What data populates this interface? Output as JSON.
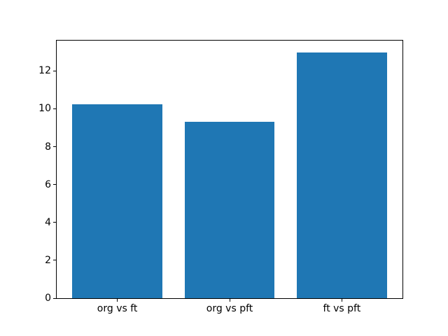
{
  "figure": {
    "background": "#ffffff",
    "text_color": "#000000",
    "spine_color": "#000000"
  },
  "chart_data": {
    "type": "bar",
    "title": "",
    "xlabel": "",
    "ylabel": "",
    "categories": [
      "org vs ft",
      "org vs pft",
      "ft vs pft"
    ],
    "values": [
      10.24,
      9.33,
      12.97
    ],
    "bar_color": "#1f77b4",
    "ylim": [
      0,
      13.6
    ],
    "yticks": [
      0,
      2,
      4,
      6,
      8,
      10,
      12
    ],
    "xlim": [
      -0.54,
      2.54
    ],
    "bar_width": 0.8,
    "grid": false,
    "legend": false
  }
}
